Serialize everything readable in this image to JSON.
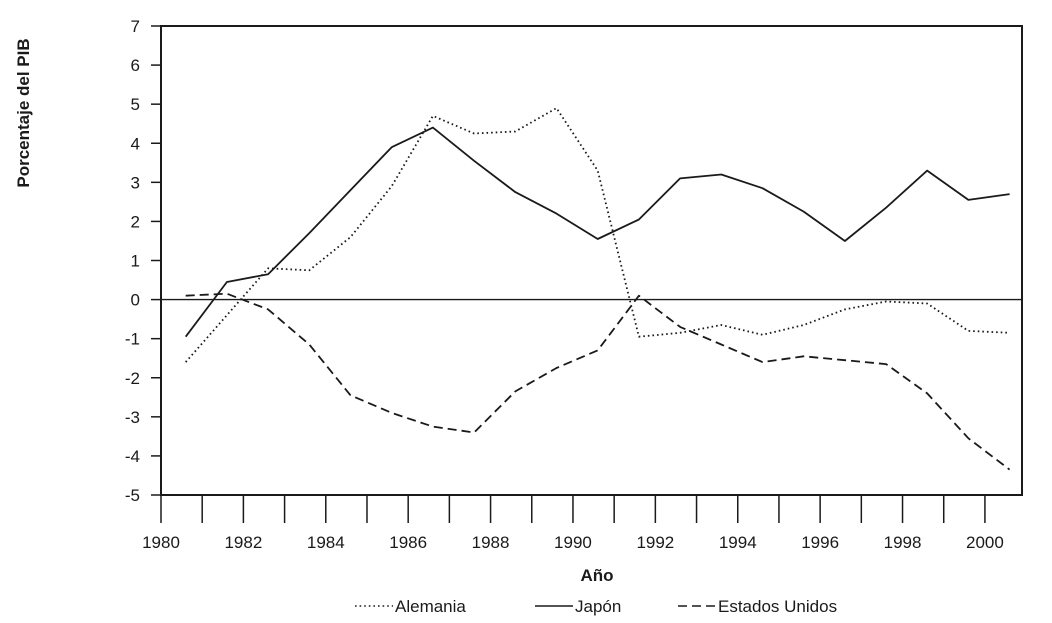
{
  "chart_data": {
    "type": "line",
    "title": "",
    "xlabel": "Año",
    "ylabel": "Porcentaje del PIB",
    "xlim": [
      1980,
      2000.9
    ],
    "ylim": [
      -5,
      7
    ],
    "xticks": [
      1980,
      1981,
      1982,
      1983,
      1984,
      1985,
      1986,
      1987,
      1988,
      1989,
      1990,
      1991,
      1992,
      1993,
      1994,
      1995,
      1996,
      1997,
      1998,
      1999,
      2000
    ],
    "xtick_labels": [
      {
        "value": 1980,
        "label": "1980"
      },
      {
        "value": 1982,
        "label": "1982"
      },
      {
        "value": 1984,
        "label": "1984"
      },
      {
        "value": 1986,
        "label": "1986"
      },
      {
        "value": 1988,
        "label": "1988"
      },
      {
        "value": 1990,
        "label": "1990"
      },
      {
        "value": 1992,
        "label": "1992"
      },
      {
        "value": 1994,
        "label": "1994"
      },
      {
        "value": 1996,
        "label": "1996"
      },
      {
        "value": 1998,
        "label": "1998"
      },
      {
        "value": 2000,
        "label": "2000"
      }
    ],
    "yticks": [
      -5,
      -4,
      -3,
      -2,
      -1,
      0,
      1,
      2,
      3,
      4,
      5,
      6,
      7
    ],
    "ytick_labels": [
      "-5",
      "-4",
      "-3",
      "-2",
      "-1",
      "0",
      "1",
      "2",
      "3",
      "4",
      "5",
      "6",
      "7"
    ],
    "zero_line": true,
    "grid": false,
    "legend_position": "bottom",
    "x": [
      1980.6,
      1981.6,
      1982.6,
      1983.6,
      1984.6,
      1985.6,
      1986.6,
      1987.6,
      1988.6,
      1989.6,
      1990.6,
      1991.6,
      1992.6,
      1993.6,
      1994.6,
      1995.6,
      1996.6,
      1997.6,
      1998.6,
      1999.6,
      2000.6
    ],
    "series": [
      {
        "name": "Alemania",
        "style": "dotted",
        "values": [
          -1.6,
          -0.4,
          0.8,
          0.75,
          1.6,
          2.9,
          4.7,
          4.25,
          4.3,
          4.9,
          3.3,
          -0.95,
          -0.85,
          -0.65,
          -0.9,
          -0.65,
          -0.25,
          -0.05,
          -0.1,
          -0.8,
          -0.85
        ]
      },
      {
        "name": "Japón",
        "style": "solid",
        "values": [
          -0.95,
          0.45,
          0.65,
          1.7,
          2.8,
          3.9,
          4.4,
          3.55,
          2.75,
          2.2,
          1.55,
          2.05,
          3.1,
          3.2,
          2.85,
          2.25,
          1.5,
          2.35,
          3.3,
          2.55,
          2.7
        ]
      },
      {
        "name": "Estados Unidos",
        "style": "dashed",
        "values": [
          0.1,
          0.15,
          -0.25,
          -1.15,
          -2.45,
          -2.9,
          -3.25,
          -3.4,
          -2.35,
          -1.75,
          -1.3,
          0.1,
          -0.7,
          -1.15,
          -1.6,
          -1.45,
          -1.55,
          -1.65,
          -2.4,
          -3.55,
          -4.35
        ]
      }
    ]
  }
}
